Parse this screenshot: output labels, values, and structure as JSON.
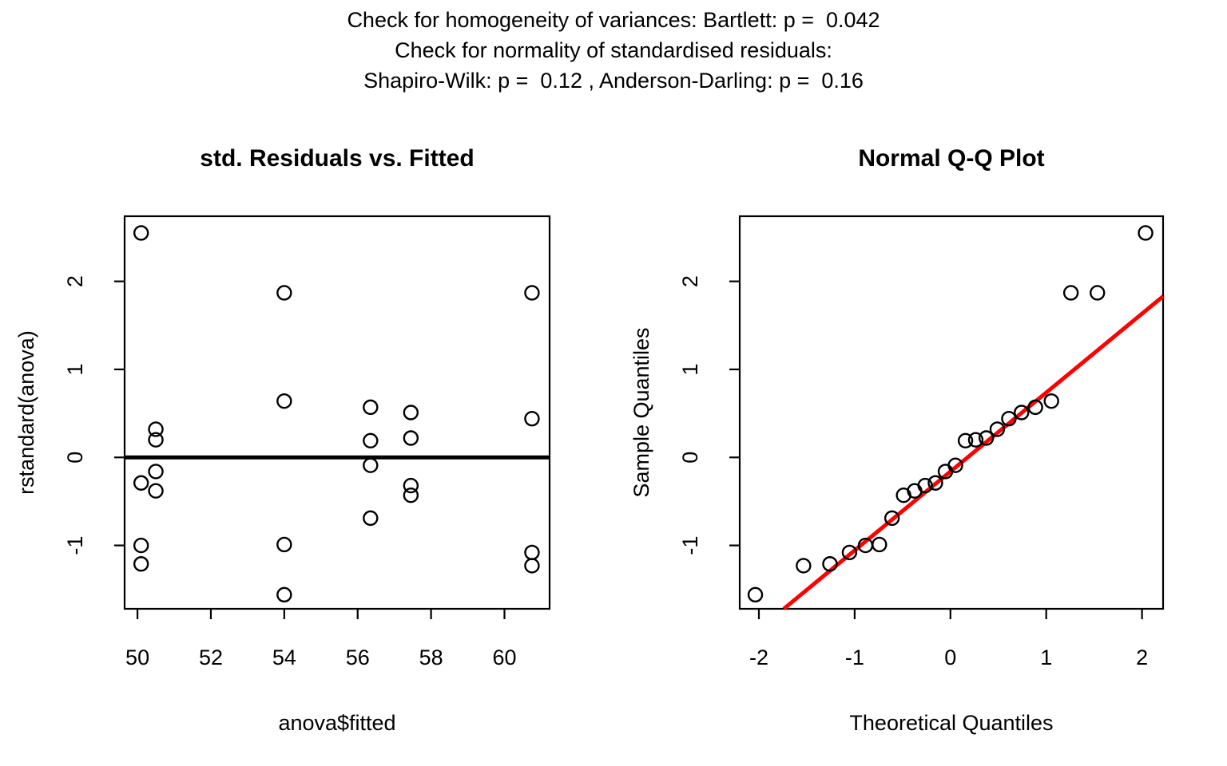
{
  "header": {
    "line1": "Check for homogeneity of variances: Bartlett: p =  0.042",
    "line2": "Check for normality of standardised residuals:",
    "line3": "Shapiro-Wilk: p =  0.12 , Anderson-Darling: p =  0.16"
  },
  "tests": {
    "bartlett_p": "0.042",
    "shapiro_wilk_p": "0.12",
    "anderson_darling_p": "0.16"
  },
  "colors": {
    "points": "#000000",
    "zero_line": "#000000",
    "qq_line": "#ff0000",
    "background": "#ffffff"
  },
  "chart_data": [
    {
      "type": "scatter",
      "title": "std. Residuals vs. Fitted",
      "xlabel": "anova$fitted",
      "ylabel": "rstandard(anova)",
      "xlim": [
        49.65,
        61.23
      ],
      "ylim": [
        -1.72,
        2.74
      ],
      "xticks": [
        50,
        52,
        54,
        56,
        58,
        60
      ],
      "yticks": [
        -1,
        0,
        1,
        2
      ],
      "grid": false,
      "legend": "none",
      "marker": "open-circle",
      "points": [
        [
          50.1,
          2.55
        ],
        [
          50.1,
          -0.29
        ],
        [
          50.1,
          -1.0
        ],
        [
          50.1,
          -1.21
        ],
        [
          50.5,
          0.32
        ],
        [
          50.5,
          0.2
        ],
        [
          50.5,
          -0.16
        ],
        [
          50.5,
          -0.38
        ],
        [
          54.0,
          1.87
        ],
        [
          54.0,
          0.64
        ],
        [
          54.0,
          -0.99
        ],
        [
          54.0,
          -1.56
        ],
        [
          56.35,
          0.57
        ],
        [
          56.35,
          0.19
        ],
        [
          56.35,
          -0.09
        ],
        [
          56.35,
          -0.69
        ],
        [
          57.45,
          0.51
        ],
        [
          57.45,
          0.22
        ],
        [
          57.45,
          -0.32
        ],
        [
          57.45,
          -0.43
        ],
        [
          60.75,
          1.87
        ],
        [
          60.75,
          0.44
        ],
        [
          60.75,
          -1.08
        ],
        [
          60.75,
          -1.23
        ]
      ],
      "refline": {
        "kind": "horizontal",
        "y": 0,
        "color": "#000000",
        "width": 5
      }
    },
    {
      "type": "scatter",
      "title": "Normal Q-Q Plot",
      "xlabel": "Theoretical Quantiles",
      "ylabel": "Sample Quantiles",
      "xlim": [
        -2.2,
        2.22
      ],
      "ylim": [
        -1.72,
        2.74
      ],
      "xticks": [
        -2,
        -1,
        0,
        1,
        2
      ],
      "yticks": [
        -1,
        0,
        1,
        2
      ],
      "grid": false,
      "legend": "none",
      "marker": "open-circle",
      "points": [
        [
          -2.037,
          -1.56
        ],
        [
          -1.534,
          -1.23
        ],
        [
          -1.258,
          -1.21
        ],
        [
          -1.054,
          -1.08
        ],
        [
          -0.887,
          -1.0
        ],
        [
          -0.742,
          -0.99
        ],
        [
          -0.61,
          -0.69
        ],
        [
          -0.489,
          -0.43
        ],
        [
          -0.374,
          -0.38
        ],
        [
          -0.264,
          -0.32
        ],
        [
          -0.157,
          -0.29
        ],
        [
          -0.052,
          -0.16
        ],
        [
          0.052,
          -0.09
        ],
        [
          0.157,
          0.19
        ],
        [
          0.264,
          0.2
        ],
        [
          0.374,
          0.22
        ],
        [
          0.489,
          0.32
        ],
        [
          0.61,
          0.44
        ],
        [
          0.742,
          0.51
        ],
        [
          0.887,
          0.57
        ],
        [
          1.054,
          0.64
        ],
        [
          1.258,
          1.87
        ],
        [
          1.534,
          1.87
        ],
        [
          2.037,
          2.55
        ]
      ],
      "refline": {
        "kind": "segment",
        "x1": -1.74,
        "y1": -1.72,
        "x2": 2.22,
        "y2": 1.83,
        "color": "#ff0000",
        "width": 5
      }
    }
  ]
}
